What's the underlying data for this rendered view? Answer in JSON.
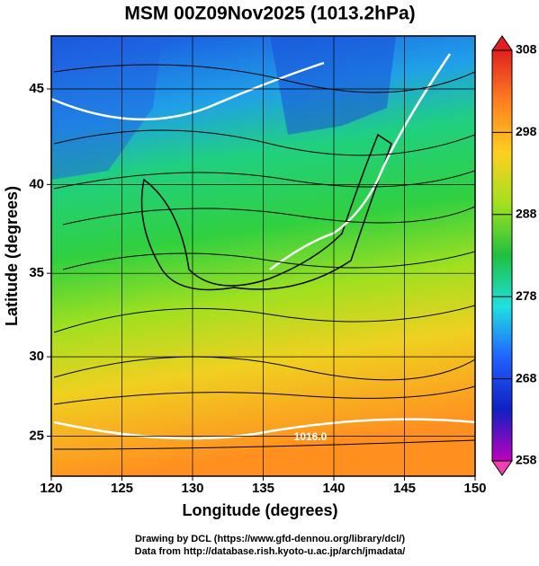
{
  "title": "MSM 00Z09Nov2025 (1013.2hPa)",
  "map": {
    "type": "map",
    "projection": "mercator",
    "xlabel": "Longitude (degrees)",
    "ylabel": "Latitude  (degrees)",
    "xlim": [
      120,
      150
    ],
    "xticks": [
      120,
      125,
      130,
      135,
      140,
      145,
      150
    ],
    "ylim": [
      22.4,
      47.6
    ],
    "yticks": [
      25,
      30,
      35,
      40,
      45
    ],
    "grid": true,
    "contour_labels": [
      "1016.0"
    ]
  },
  "colorbar": {
    "lim": [
      258,
      308
    ],
    "ticks": [
      258,
      268,
      278,
      288,
      298,
      308
    ],
    "colors": [
      "#c000c0",
      "#1020c0",
      "#2060ff",
      "#20e0e0",
      "#20c040",
      "#a0e020",
      "#ffd020",
      "#ff8020",
      "#e02020"
    ]
  },
  "credits": [
    "Drawing by DCL (https://www.gfd-dennou.org/library/dcl/)",
    "Data from http://database.rish.kyoto-u.ac.jp/arch/jmadata/"
  ]
}
